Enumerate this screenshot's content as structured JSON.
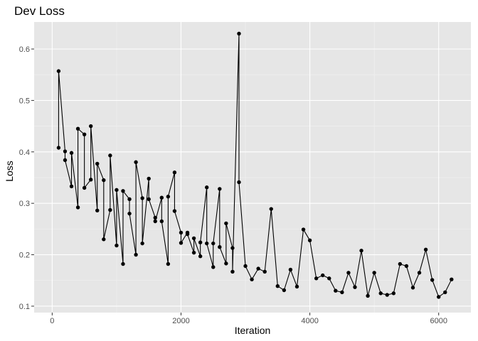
{
  "chart_data": {
    "type": "line",
    "title": "Dev Loss",
    "xlabel": "Iteration",
    "ylabel": "Loss",
    "xlim": [
      -280,
      6500
    ],
    "ylim": [
      0.0875,
      0.6525
    ],
    "x_ticks": [
      0,
      2000,
      4000,
      6000
    ],
    "x_tick_labels": [
      "0",
      "2000",
      "4000",
      "6000"
    ],
    "y_ticks": [
      0.1,
      0.2,
      0.3,
      0.4,
      0.5,
      0.6
    ],
    "y_tick_labels": [
      "0.1",
      "0.2",
      "0.3",
      "0.4",
      "0.5",
      "0.6"
    ],
    "grid": true,
    "colors": {
      "panel": "#e6e6e6",
      "grid_major": "#ffffff",
      "grid_minor": "#f2f2f2",
      "line": "#000000",
      "tick_text": "#4d4d4d"
    },
    "series": [
      {
        "name": "dev_loss",
        "x": [
          100,
          100,
          200,
          200,
          300,
          300,
          400,
          400,
          500,
          500,
          600,
          600,
          700,
          700,
          800,
          800,
          900,
          900,
          1000,
          1000,
          1100,
          1100,
          1200,
          1200,
          1300,
          1300,
          1400,
          1400,
          1500,
          1500,
          1600,
          1600,
          1700,
          1700,
          1800,
          1800,
          1900,
          1900,
          2000,
          2000,
          2100,
          2100,
          2200,
          2200,
          2300,
          2300,
          2400,
          2400,
          2500,
          2500,
          2600,
          2600,
          2700,
          2700,
          2800,
          2800,
          2900,
          2900,
          3000,
          3100,
          3200,
          3300,
          3400,
          3500,
          3600,
          3700,
          3800,
          3900,
          4000,
          4100,
          4200,
          4300,
          4400,
          4500,
          4600,
          4700,
          4800,
          4900,
          5000,
          5100,
          5200,
          5300,
          5400,
          5500,
          5600,
          5700,
          5800,
          5900,
          6000,
          6100,
          6200
        ],
        "y": [
          0.408,
          0.557,
          0.401,
          0.384,
          0.333,
          0.398,
          0.292,
          0.445,
          0.434,
          0.33,
          0.346,
          0.45,
          0.286,
          0.377,
          0.345,
          0.23,
          0.287,
          0.393,
          0.218,
          0.326,
          0.182,
          0.324,
          0.308,
          0.28,
          0.2,
          0.38,
          0.31,
          0.222,
          0.348,
          0.308,
          0.272,
          0.265,
          0.311,
          0.265,
          0.182,
          0.313,
          0.36,
          0.285,
          0.243,
          0.223,
          0.243,
          0.24,
          0.204,
          0.232,
          0.197,
          0.224,
          0.331,
          0.222,
          0.176,
          0.222,
          0.328,
          0.215,
          0.183,
          0.261,
          0.213,
          0.167,
          0.63,
          0.341,
          0.178,
          0.152,
          0.173,
          0.167,
          0.289,
          0.139,
          0.131,
          0.171,
          0.138,
          0.249,
          0.228,
          0.154,
          0.16,
          0.154,
          0.13,
          0.127,
          0.165,
          0.137,
          0.208,
          0.12,
          0.165,
          0.125,
          0.122,
          0.125,
          0.182,
          0.178,
          0.136,
          0.165,
          0.21,
          0.151,
          0.118,
          0.127,
          0.152
        ]
      }
    ]
  }
}
